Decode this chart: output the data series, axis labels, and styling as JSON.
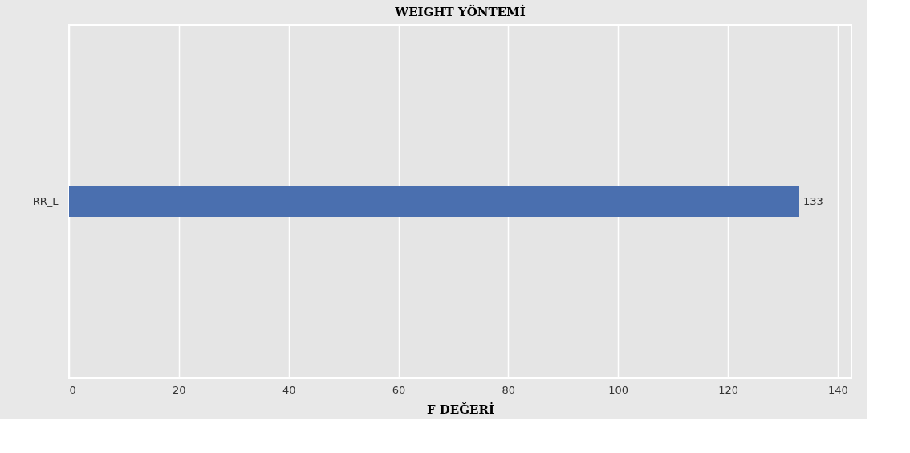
{
  "chart_data": {
    "type": "bar",
    "orientation": "horizontal",
    "title": "WEIGHT YÖNTEMİ",
    "xlabel": "F DEĞERİ",
    "categories": [
      "RR_L"
    ],
    "values": [
      133
    ],
    "color": "#4a6faf",
    "xlim": [
      0,
      142.5
    ],
    "xticks": [
      0,
      20,
      40,
      60,
      80,
      100,
      120,
      140
    ],
    "grid": "x",
    "data_labels": true
  }
}
